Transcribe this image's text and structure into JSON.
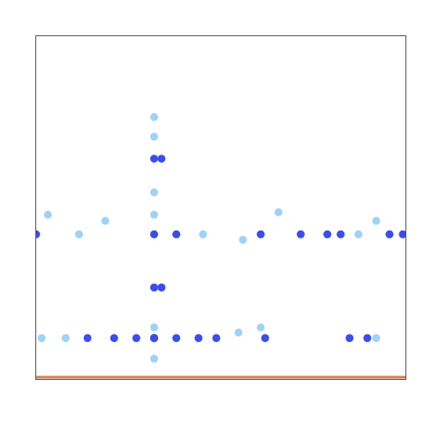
{
  "chart_data": {
    "type": "scatter",
    "xlim": [
      0,
      100
    ],
    "ylim": [
      0,
      100
    ],
    "tick_labels": false,
    "grid": false,
    "series": [
      {
        "color": "#3b4ee6",
        "marker": "circle",
        "x": [
          32.1,
          34.1,
          32.1,
          32.1,
          34.1,
          32.1,
          0.2,
          38.1,
          60.9,
          71.7,
          78.9,
          82.5,
          95.7,
          99.3,
          14.1,
          21.3,
          27.3,
          32.1,
          38.1,
          44.1,
          48.9,
          62.1,
          84.9,
          89.7
        ],
        "values": [
          64.1,
          64.1,
          42.1,
          26.6,
          26.6,
          11.9,
          42.1,
          42.1,
          42.1,
          42.1,
          42.1,
          42.1,
          42.1,
          42.1,
          11.9,
          11.9,
          11.9,
          11.9,
          11.9,
          11.9,
          11.9,
          11.9,
          11.9,
          11.9
        ]
      },
      {
        "color": "#9fd3f5",
        "marker": "circle",
        "x": [
          32.1,
          32.1,
          32.1,
          32.1,
          32.1,
          3.4,
          11.8,
          18.9,
          45.3,
          56.1,
          65.7,
          87.3,
          92.1,
          1.7,
          8.2,
          54.9,
          60.9,
          32.1,
          92.1
        ],
        "values": [
          76.2,
          70.5,
          54.3,
          47.8,
          5.9,
          47.8,
          42.1,
          46.0,
          42.1,
          40.5,
          48.5,
          42.1,
          46.0,
          11.9,
          11.9,
          13.5,
          15.0,
          15.0,
          11.9
        ]
      },
      {
        "type": "line",
        "color": "#d9804a",
        "line_style": "solid",
        "x": [
          0,
          100
        ],
        "values": [
          0.5,
          0.5
        ]
      }
    ]
  }
}
